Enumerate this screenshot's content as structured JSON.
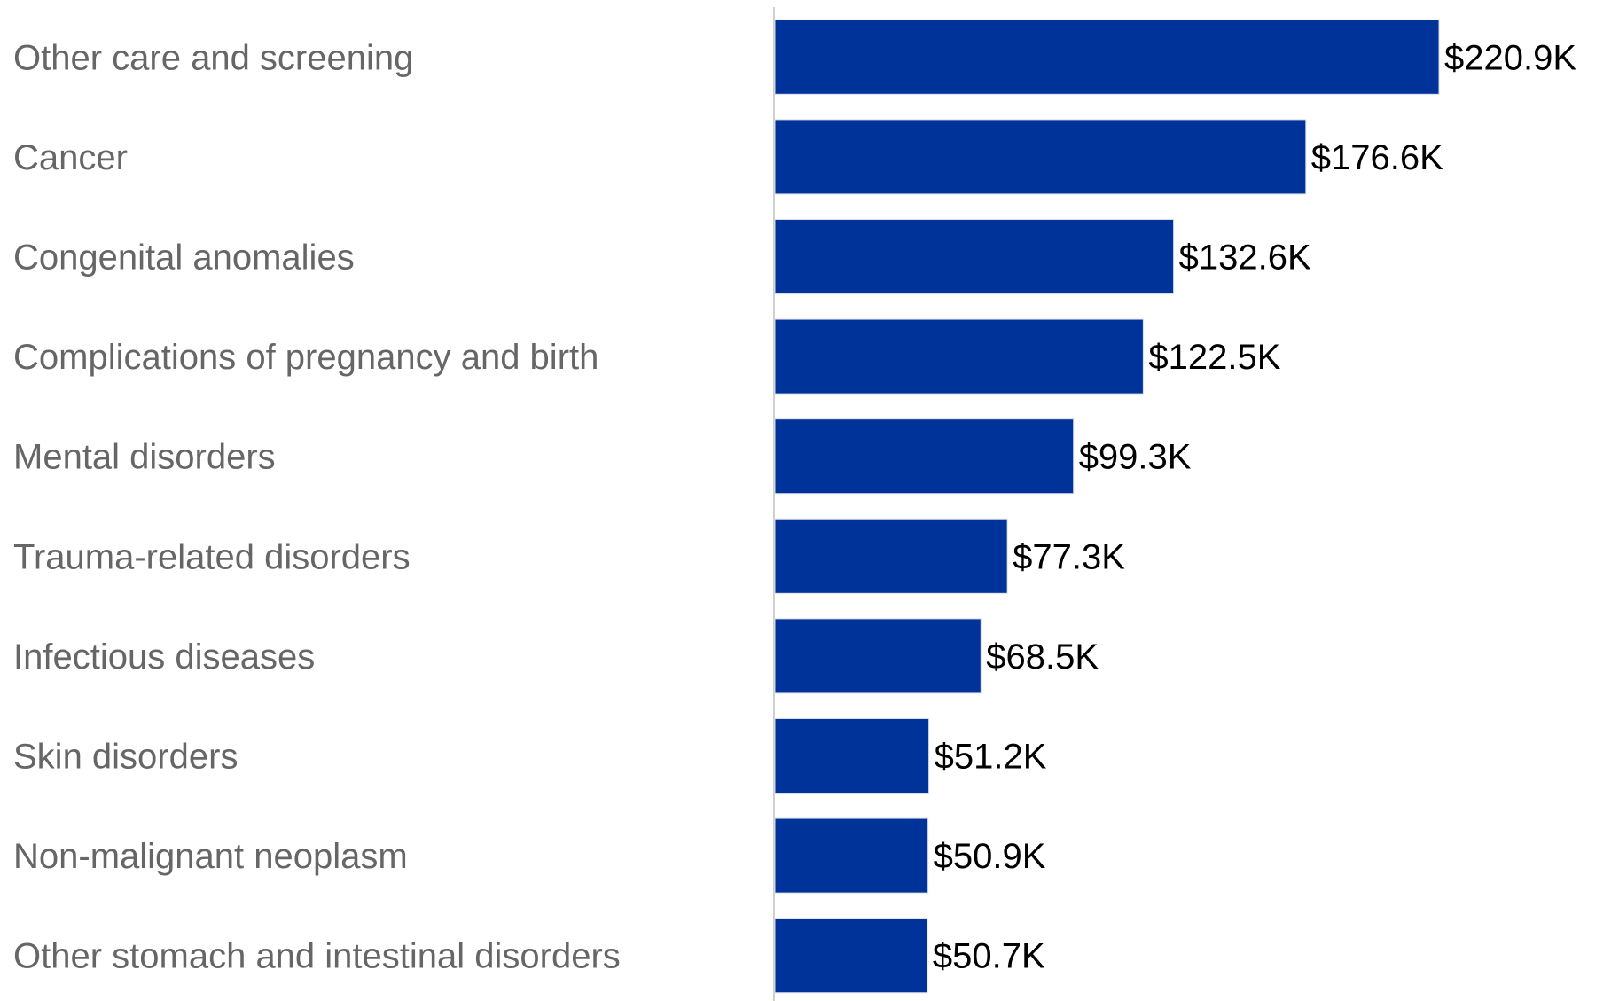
{
  "chart_data": {
    "type": "bar",
    "orientation": "horizontal",
    "title": "",
    "xlabel": "",
    "ylabel": "",
    "categories": [
      "Other care and screening",
      "Cancer",
      "Congenital anomalies",
      "Complications of pregnancy and birth",
      "Mental disorders",
      "Trauma-related disorders",
      "Infectious diseases",
      "Skin disorders",
      "Non-malignant neoplasm",
      "Other stomach and intestinal disorders"
    ],
    "values": [
      220.9,
      176.6,
      132.6,
      122.5,
      99.3,
      77.3,
      68.5,
      51.2,
      50.9,
      50.7
    ],
    "value_labels": [
      "$220.9K",
      "$176.6K",
      "$132.6K",
      "$122.5K",
      "$99.3K",
      "$77.3K",
      "$68.5K",
      "$51.2K",
      "$50.9K",
      "$50.7K"
    ],
    "units": "$K",
    "xlim": [
      0,
      220.9
    ],
    "grid": false,
    "legend": "none",
    "bar_color": "#00339A",
    "axis_color": "#D0D0D0",
    "category_label_color": "#666666",
    "value_label_color": "#000000"
  }
}
